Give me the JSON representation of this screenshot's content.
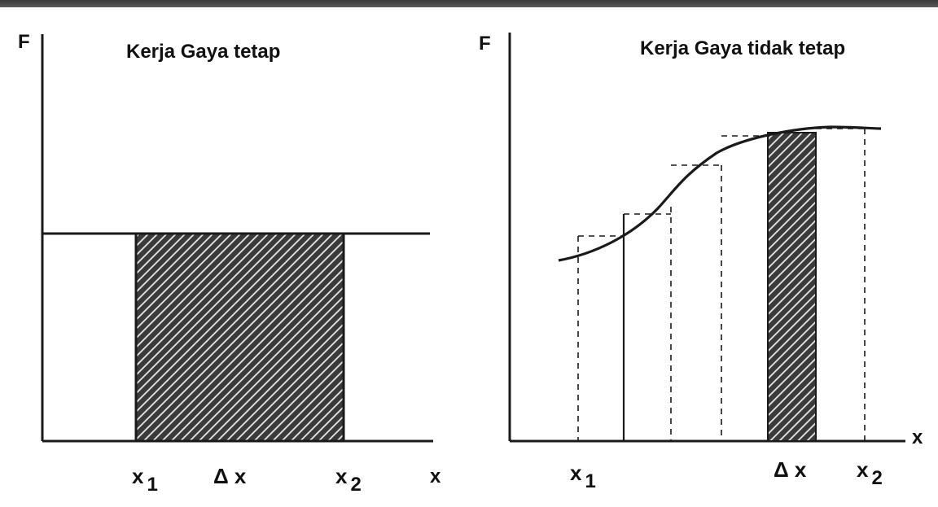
{
  "left": {
    "y_axis_label": "F",
    "title": "Kerja Gaya tetap",
    "x_axis_label": "x",
    "x1_main": "x",
    "x1_sub": "1",
    "dx": "Δ x",
    "x2_main": "x",
    "x2_sub": "2"
  },
  "right": {
    "y_axis_label": "F",
    "title": "Kerja Gaya tidak tetap",
    "x_axis_label": "x",
    "x1_main": "x",
    "x1_sub": "1",
    "dx": "Δ x",
    "x2_main": "x",
    "x2_sub": "2"
  },
  "colors": {
    "ink": "#1a1a1a",
    "hatch_bg": "#3a3a3a",
    "hatch_line": "#e6e6e6"
  }
}
